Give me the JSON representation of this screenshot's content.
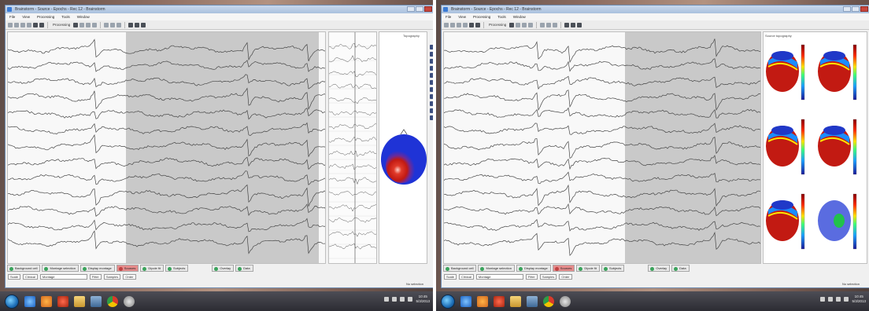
{
  "left": {
    "title": "Brainstorm - Source - Epochs - Rec 12 - Brainstorm",
    "menu": [
      "File",
      "View",
      "Processing",
      "Tools",
      "Window"
    ],
    "toolbar_label": "Processing",
    "tabs": [
      {
        "label": "Background cell"
      },
      {
        "label": "Montage selection"
      },
      {
        "label": "Display montage"
      },
      {
        "label": "Sources"
      },
      {
        "label": "Dipole fit"
      },
      {
        "label": "Subjects"
      }
    ],
    "bottom_fields": [
      "Scale",
      "Clinical",
      "Montage",
      "Filter",
      "Samples",
      "Order"
    ],
    "panel_label": "Topography",
    "status_right": "No selection",
    "mini_tabs": [
      "Overlay",
      "Data"
    ]
  },
  "right": {
    "title": "Brainstorm - Source - Epochs - Rec 12 - Brainstorm",
    "menu": [
      "File",
      "View",
      "Processing",
      "Tools",
      "Window"
    ],
    "toolbar_label": "Processing",
    "tabs": [
      {
        "label": "Background cell"
      },
      {
        "label": "Montage selection"
      },
      {
        "label": "Display montage"
      },
      {
        "label": "Sources"
      },
      {
        "label": "Dipole fit"
      },
      {
        "label": "Subjects"
      }
    ],
    "bottom_fields": [
      "Scale",
      "Clinical",
      "Montage",
      "Filter",
      "Samples",
      "Order"
    ],
    "panel_label": "Source topography",
    "status_right": "No selection",
    "mini_tabs": [
      "Overlay",
      "Data"
    ]
  },
  "taskbar": {
    "clock_time": "10:45",
    "clock_date": "5/3/2013"
  },
  "colors": {
    "eeg_trace": "#474747",
    "epoch_shade": "#c9c9c9",
    "topomap_red": "#c21a12",
    "topomap_blue": "#1f33d6"
  }
}
